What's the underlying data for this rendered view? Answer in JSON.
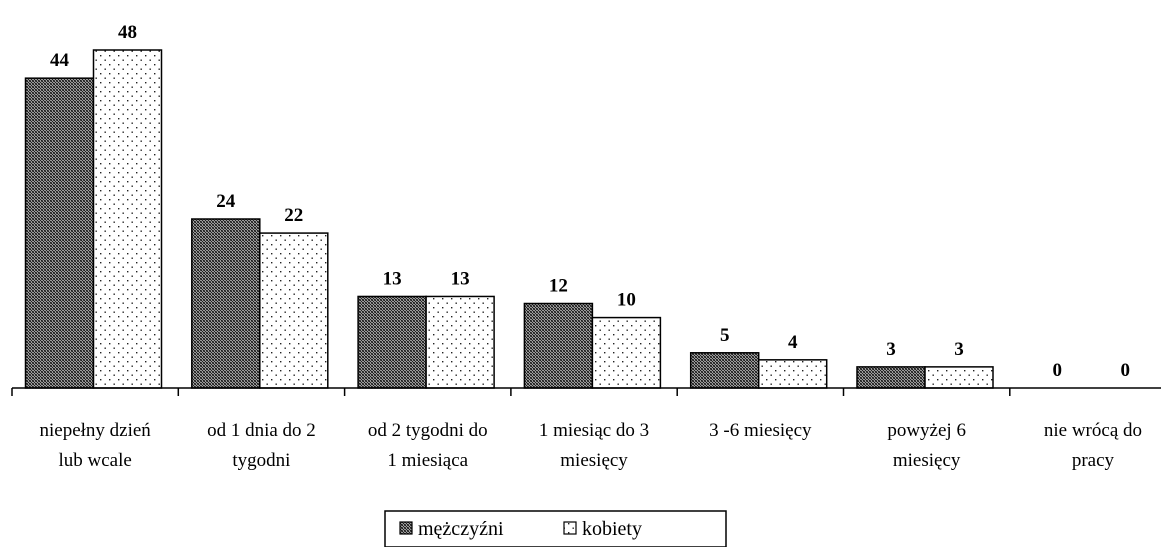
{
  "chart_data": {
    "type": "bar",
    "categories": [
      [
        "niepełny dzień",
        "lub wcale"
      ],
      [
        "od 1 dnia do 2",
        "tygodni"
      ],
      [
        "od 2 tygodni do",
        "1 miesiąca"
      ],
      [
        "1 miesiąc do 3",
        "miesięcy"
      ],
      [
        "3 -6 miesięcy"
      ],
      [
        "powyżej 6",
        "miesięcy"
      ],
      [
        "nie wrócą do",
        "pracy"
      ]
    ],
    "series": [
      {
        "name": "mężczyźni",
        "values": [
          44,
          24,
          13,
          12,
          5,
          3,
          0
        ],
        "pattern": "crosshatch",
        "color": "#555555"
      },
      {
        "name": "kobiety",
        "values": [
          48,
          22,
          13,
          10,
          4,
          3,
          0
        ],
        "pattern": "dots",
        "color": "#ffffff"
      }
    ],
    "ylim": [
      0,
      48
    ],
    "grid": false,
    "legend_position": "bottom-center",
    "show_data_labels": true
  }
}
